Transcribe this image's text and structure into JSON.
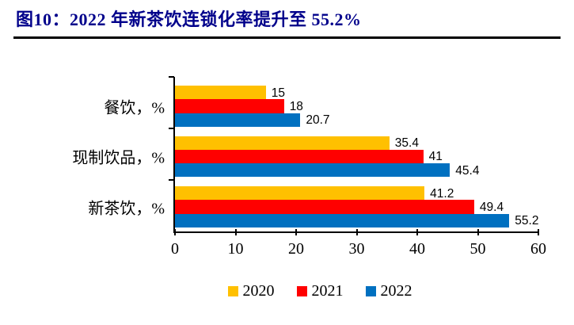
{
  "title": "图10：2022 年新茶饮连锁化率提升至 55.2%",
  "colors": {
    "title_text": "#00008B",
    "axis": "#000000",
    "series_2020": "#FFC000",
    "series_2021": "#FF0000",
    "series_2022": "#0070C0"
  },
  "chart_data": {
    "type": "bar",
    "orientation": "horizontal",
    "title": "",
    "xlabel": "",
    "ylabel": "",
    "categories": [
      "餐饮，%",
      "现制饮品，%",
      "新茶饮，%"
    ],
    "series": [
      {
        "name": "2020",
        "color": "#FFC000",
        "values": [
          15,
          35.4,
          41.2
        ],
        "labels": [
          "15",
          "35.4",
          "41.2"
        ]
      },
      {
        "name": "2021",
        "color": "#FF0000",
        "values": [
          18,
          41,
          49.4
        ],
        "labels": [
          "18",
          "41",
          "49.4"
        ]
      },
      {
        "name": "2022",
        "color": "#0070C0",
        "values": [
          20.7,
          45.4,
          55.2
        ],
        "labels": [
          "20.7",
          "45.4",
          "55.2"
        ]
      }
    ],
    "xlim": [
      0,
      60
    ],
    "xticks": [
      0,
      10,
      20,
      30,
      40,
      50,
      60
    ],
    "grid": false,
    "legend": [
      "2020",
      "2021",
      "2022"
    ],
    "legend_position": "bottom"
  }
}
